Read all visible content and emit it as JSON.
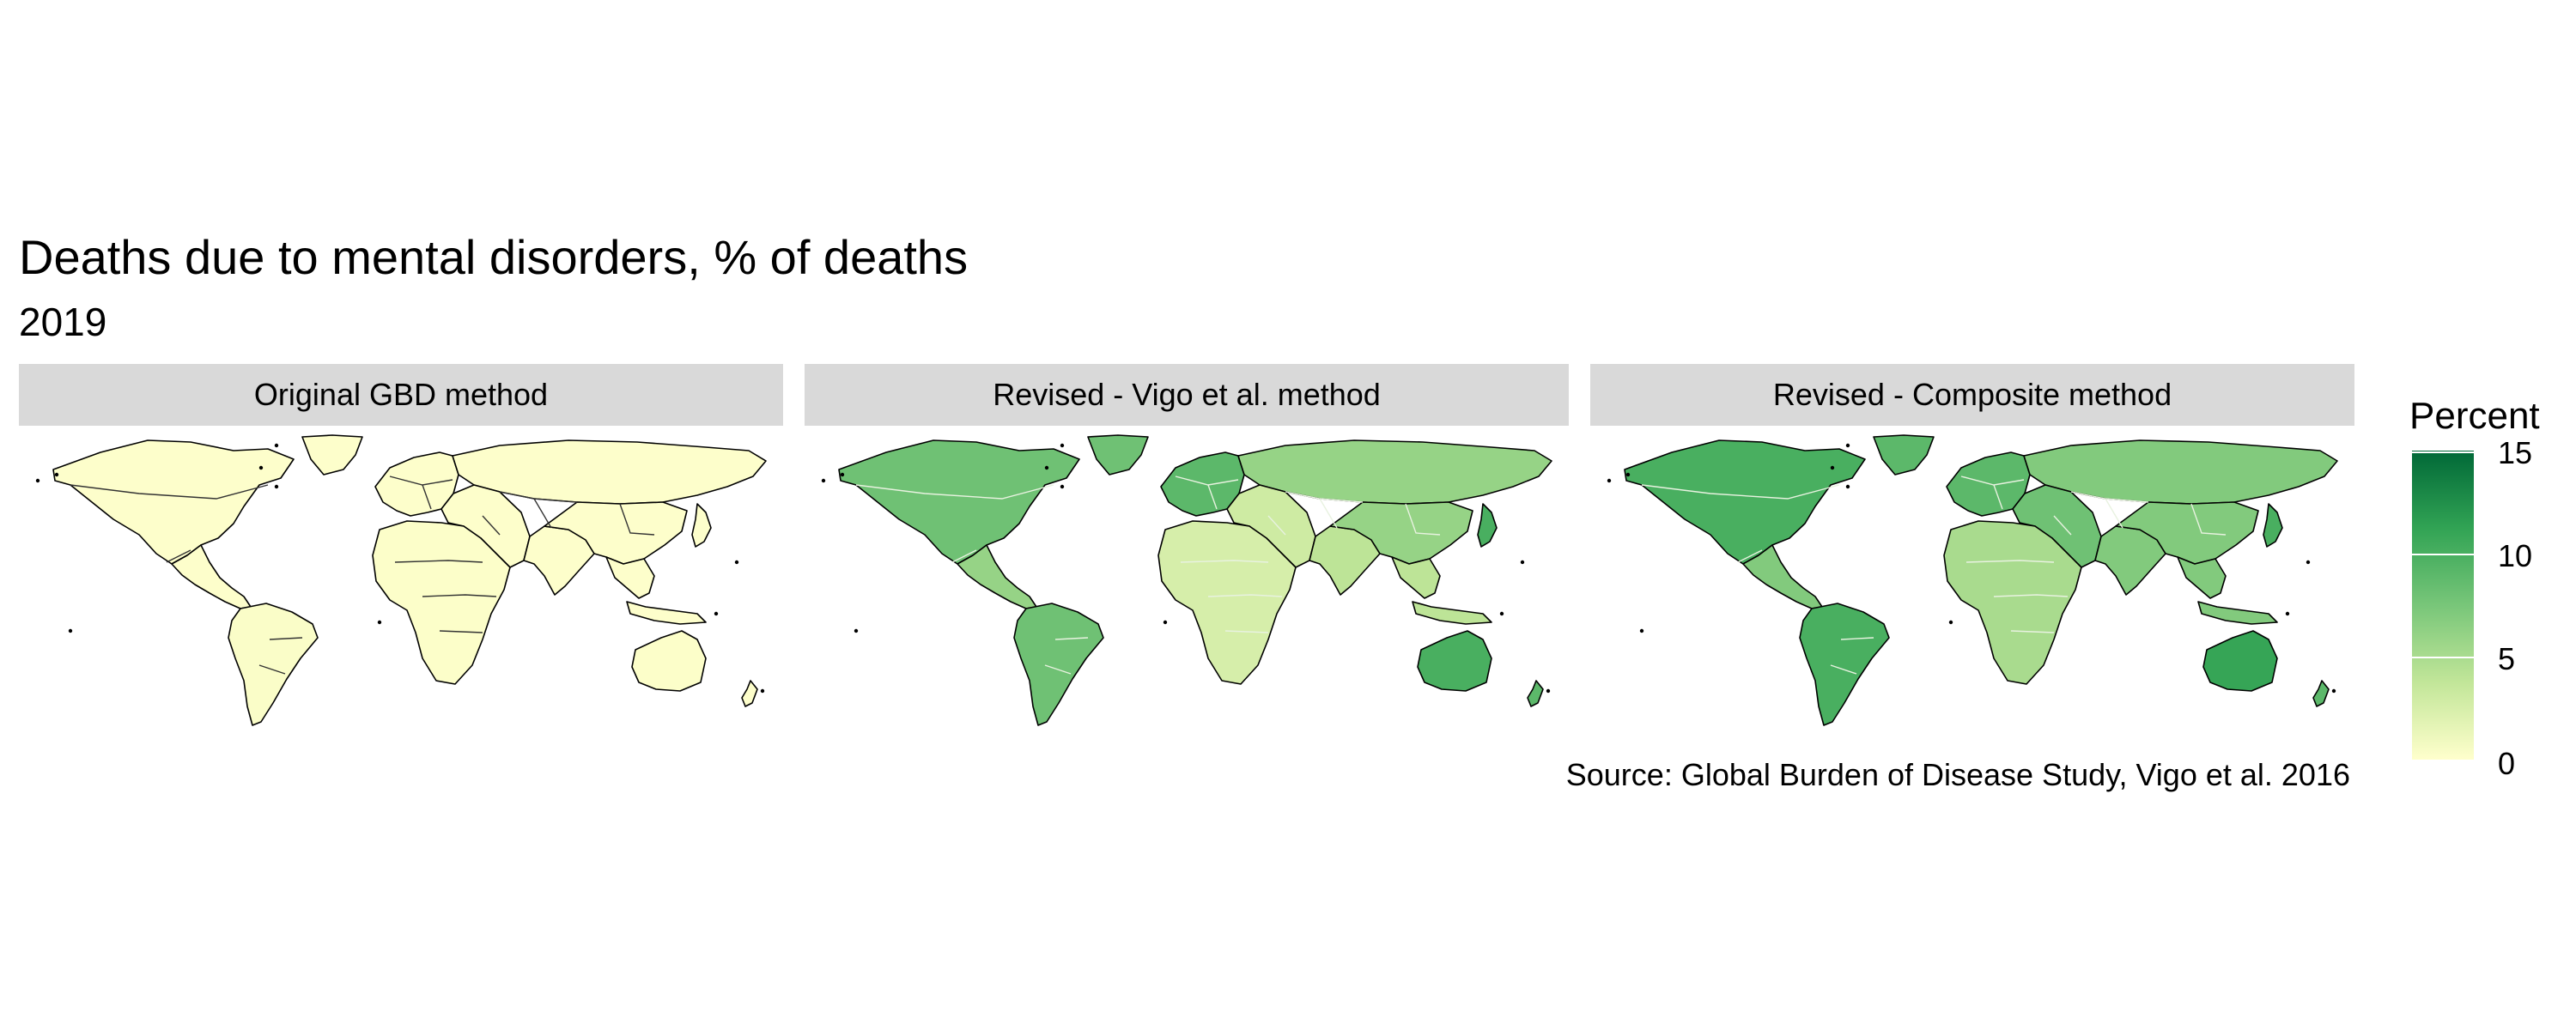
{
  "title": "Deaths due to mental disorders, % of deaths",
  "subtitle": "2019",
  "caption": "Source: Global Burden of Disease Study, Vigo et al. 2016",
  "colors": {
    "low": "#ffffcc",
    "mid": "#78c679",
    "high": "#006837",
    "strip": "#d9d9d9"
  },
  "legend": {
    "title": "Percent",
    "ticks": [
      "15",
      "10",
      "5",
      "0"
    ],
    "min": 0,
    "max": 15
  },
  "chart_data": {
    "type": "choropleth",
    "variable": "Deaths due to mental disorders, % of deaths",
    "year": "2019",
    "scale": {
      "min": 0,
      "max": 15
    },
    "panels": [
      {
        "label": "Original GBD method",
        "regions": {
          "north_america": 0.1,
          "greenland": 0.1,
          "latin_america": 0.1,
          "south_america": 0.3,
          "europe": 0.1,
          "russia_central_asia": 0.1,
          "middle_east": 0.1,
          "africa": 0.2,
          "south_asia": 0.1,
          "east_asia": 0.1,
          "southeast_asia": 0.1,
          "japan": 0.1,
          "australia": 0.2,
          "new_zealand": 0.1
        }
      },
      {
        "label": "Revised - Vigo et al. method",
        "regions": {
          "north_america": 8,
          "greenland": 8,
          "latin_america": 6,
          "south_america": 8,
          "europe": 9,
          "russia_central_asia": 6,
          "middle_east": 3,
          "africa": 2.5,
          "south_asia": 4,
          "east_asia": 6,
          "southeast_asia": 4,
          "japan": 10,
          "australia": 10,
          "new_zealand": 9
        }
      },
      {
        "label": "Revised - Composite method",
        "regions": {
          "north_america": 10,
          "greenland": 9,
          "latin_america": 7,
          "south_america": 10,
          "europe": 9,
          "russia_central_asia": 7,
          "middle_east": 8,
          "africa": 5,
          "south_asia": 7,
          "east_asia": 7,
          "southeast_asia": 7,
          "japan": 10,
          "australia": 11,
          "new_zealand": 9
        }
      }
    ]
  }
}
